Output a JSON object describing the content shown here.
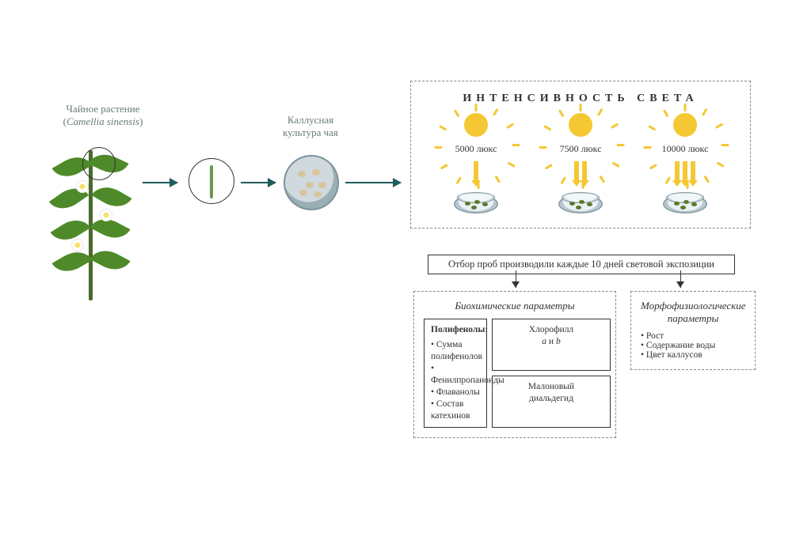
{
  "plant": {
    "label_line1": "Чайное растение",
    "label_line2_open": "(",
    "label_line2_italic": "Camellia sinensis",
    "label_line2_close": ")",
    "colors": {
      "stem": "#4a6b2a",
      "leaf": "#4e8a2a",
      "circle": "#333333"
    }
  },
  "callus": {
    "label_line1": "Каллусная",
    "label_line2": "культура чая"
  },
  "arrows": {
    "main_color": "#1f5d5d"
  },
  "light_panel": {
    "title": "ИНТЕНСИВНОСТЬ  СВЕТА",
    "sun_color": "#f4c733",
    "arrow_color": "#f4c733",
    "columns": [
      {
        "lux_label": "5000 люкс",
        "arrow_count": 1
      },
      {
        "lux_label": "7500 люкс",
        "arrow_count": 2
      },
      {
        "lux_label": "10000 люкс",
        "arrow_count": 3
      }
    ]
  },
  "sampling": {
    "text": "Отбор проб производили каждые 10 дней световой экспозиции"
  },
  "bio": {
    "title": "Биохимические параметры",
    "chlorophyll_line1": "Хлорофилл",
    "chlorophyll_line2_a": "а",
    "chlorophyll_line2_mid": " и ",
    "chlorophyll_line2_b": "b",
    "mda_line1": "Малоновый",
    "mda_line2": "диальдегид",
    "poly_title": "Полифенолы:",
    "poly_items": [
      "Сумма полифенолов",
      "Фенилпропаноиды",
      "Флаванолы",
      "Состав катехинов"
    ]
  },
  "morph": {
    "title_line1": "Морфофизиологические",
    "title_line2": "параметры",
    "items": [
      "Рост",
      "Содержание воды",
      "Цвет каллусов"
    ]
  }
}
